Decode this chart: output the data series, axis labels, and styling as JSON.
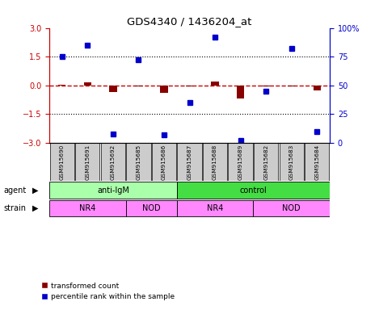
{
  "title": "GDS4340 / 1436204_at",
  "samples": [
    "GSM915690",
    "GSM915691",
    "GSM915692",
    "GSM915685",
    "GSM915686",
    "GSM915687",
    "GSM915688",
    "GSM915689",
    "GSM915682",
    "GSM915683",
    "GSM915684"
  ],
  "red_values": [
    0.05,
    0.15,
    -0.35,
    -0.05,
    -0.4,
    -0.05,
    0.2,
    -0.7,
    -0.05,
    -0.05,
    -0.25
  ],
  "blue_values": [
    75,
    85,
    8,
    72,
    7,
    35,
    92,
    2,
    45,
    82,
    10
  ],
  "ylim_left": [
    -3,
    3
  ],
  "ylim_right": [
    0,
    100
  ],
  "yticks_left": [
    -3,
    -1.5,
    0,
    1.5,
    3
  ],
  "yticks_right": [
    0,
    25,
    50,
    75,
    100
  ],
  "hlines": [
    1.5,
    -1.5
  ],
  "hline_zero_color": "#cc0000",
  "hline_color": "black",
  "agent_labels": [
    {
      "label": "anti-IgM",
      "start": 0,
      "end": 5
    },
    {
      "label": "control",
      "start": 5,
      "end": 11
    }
  ],
  "strain_labels": [
    {
      "label": "NR4",
      "start": 0,
      "end": 3
    },
    {
      "label": "NOD",
      "start": 3,
      "end": 5
    },
    {
      "label": "NR4",
      "start": 5,
      "end": 8
    },
    {
      "label": "NOD",
      "start": 8,
      "end": 11
    }
  ],
  "agent_color_light": "#aaffaa",
  "agent_color_dark": "#44dd44",
  "strain_color": "#ff88ff",
  "bar_color": "#880000",
  "dot_color": "#0000cc",
  "bg_color": "#ffffff",
  "plot_bg": "#ffffff",
  "legend_red_label": "transformed count",
  "legend_blue_label": "percentile rank within the sample",
  "right_axis_color": "#0000cc",
  "left_axis_color": "#cc0000",
  "sample_bg_color": "#cccccc",
  "figsize": [
    4.69,
    3.84
  ],
  "dpi": 100
}
